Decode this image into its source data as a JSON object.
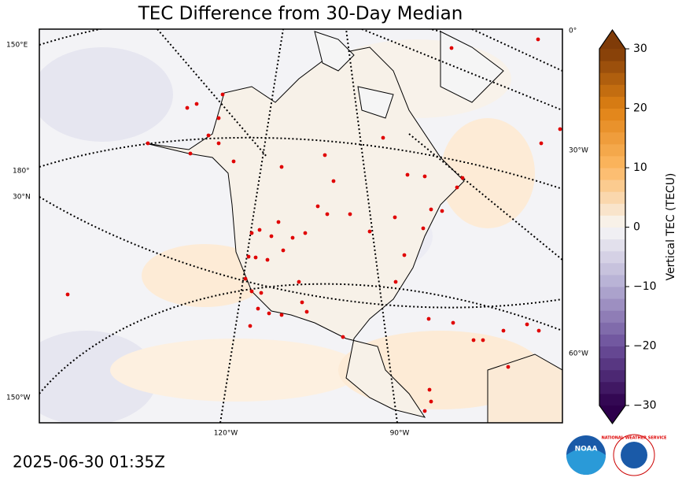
{
  "title": "TEC Difference from 30-Day Median",
  "timestamp": "2025-06-30 01:35Z",
  "map_labels": {
    "left": [
      "150°E",
      "180°",
      "30°N",
      "150°W"
    ],
    "bottom": [
      "120°W",
      "90°W"
    ],
    "right": [
      "0°",
      "30°W",
      "60°W"
    ]
  },
  "colorbar": {
    "label": "Vertical TEC (TECU)",
    "lim": [
      -30,
      30
    ],
    "ticks": [
      {
        "value": -30,
        "label": "−30"
      },
      {
        "value": -20,
        "label": "−20"
      },
      {
        "value": -10,
        "label": "−10"
      },
      0,
      10,
      20,
      30
    ]
  },
  "logos": {
    "noaa": "NOAA",
    "nws": "NATIONAL WEATHER SERVICE"
  }
}
